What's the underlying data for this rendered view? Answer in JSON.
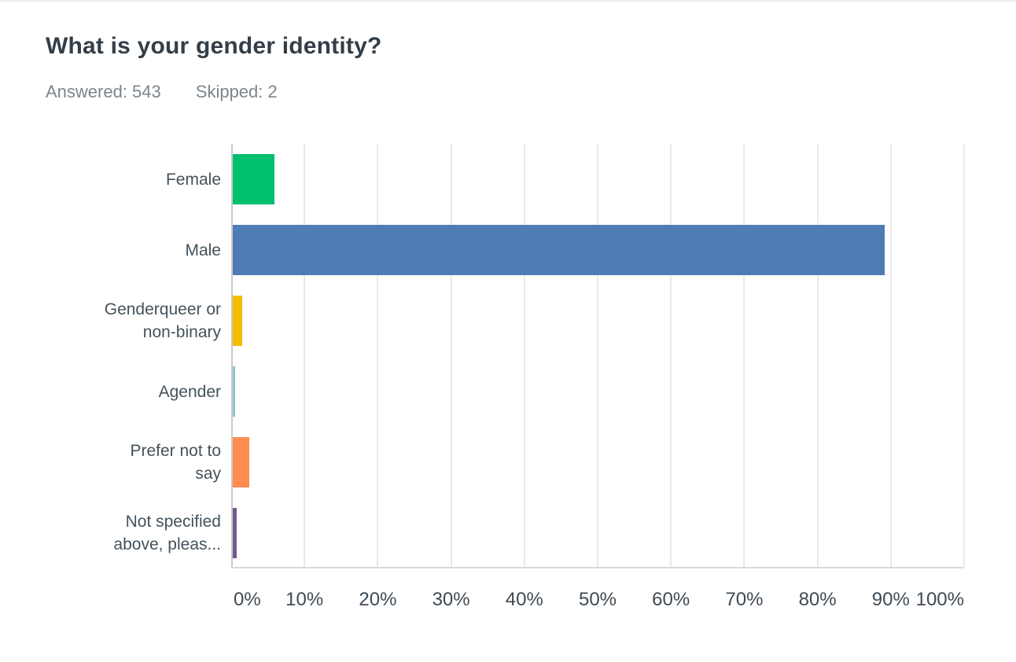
{
  "header": {
    "title": "What is your gender identity?",
    "answered_label": "Answered: 543",
    "skipped_label": "Skipped: 2"
  },
  "chart_data": {
    "type": "bar",
    "orientation": "horizontal",
    "title": "What is your gender identity?",
    "answered_count": 543,
    "skipped_count": 2,
    "categories": [
      "Female",
      "Male",
      "Genderqueer or non-binary",
      "Agender",
      "Prefer not to say",
      "Not specified above, pleas..."
    ],
    "category_labels": [
      "Female",
      "Male",
      "Genderqueer or\nnon-binary",
      "Agender",
      "Prefer not to\nsay",
      "Not specified\nabove, pleas..."
    ],
    "values_percent": [
      5.7,
      89.1,
      1.3,
      0.3,
      2.3,
      0.5
    ],
    "bar_colors": [
      "#00BF6F",
      "#507CB6",
      "#F5BC00",
      "#86C8CD",
      "#FF8C50",
      "#75598C"
    ],
    "x_ticks": [
      "0%",
      "10%",
      "20%",
      "30%",
      "40%",
      "50%",
      "60%",
      "70%",
      "80%",
      "90%",
      "100%"
    ],
    "xlim": [
      0,
      100
    ],
    "xlabel": "",
    "ylabel": "",
    "grid": true,
    "legend_position": "none"
  },
  "style": {
    "title_color": "#333E48",
    "meta_color": "#7A868F",
    "label_color": "#43525C",
    "gridline_color": "#E9E9E9",
    "y_axis_color": "#C9C9C9",
    "x_axis_color": "#DADADA",
    "background": "#FFFFFF"
  }
}
